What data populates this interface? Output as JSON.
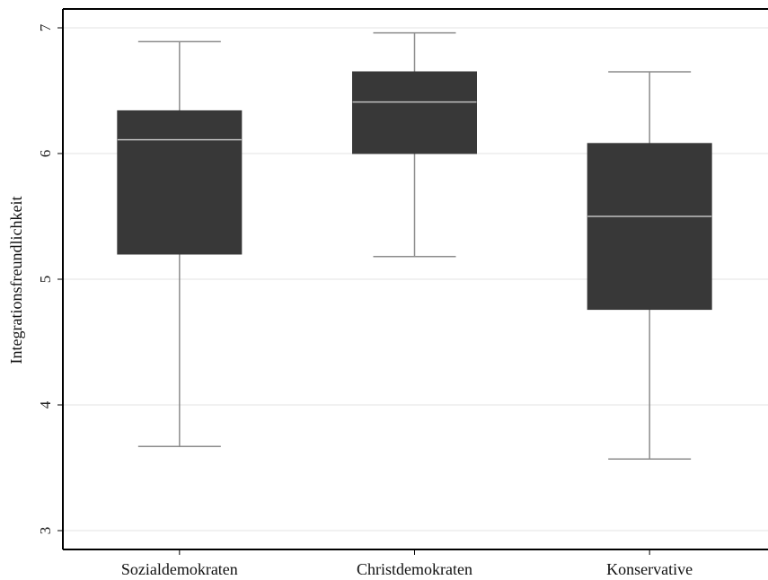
{
  "chart_data": {
    "type": "boxplot",
    "ylabel": "Integrationsfreundlichkeit",
    "xlabel": "",
    "ylim": [
      3,
      7
    ],
    "yticks": [
      3,
      4,
      5,
      6,
      7
    ],
    "grid": true,
    "categories": [
      "Sozialdemokraten",
      "Christdemokraten",
      "Konservative"
    ],
    "boxes": [
      {
        "category": "Sozialdemokraten",
        "min": 3.67,
        "q1": 5.2,
        "median": 6.11,
        "q3": 6.34,
        "max": 6.89
      },
      {
        "category": "Christdemokraten",
        "min": 5.18,
        "q1": 6.0,
        "median": 6.41,
        "q3": 6.65,
        "max": 6.96
      },
      {
        "category": "Konservative",
        "min": 3.57,
        "q1": 4.76,
        "median": 5.5,
        "q3": 6.08,
        "max": 6.65
      }
    ],
    "colors": {
      "box_fill": "#383838",
      "median_line": "#bfbfbf",
      "whisker": "#8c8c8c",
      "grid": "#e3e3e3",
      "axis": "#000000"
    }
  }
}
